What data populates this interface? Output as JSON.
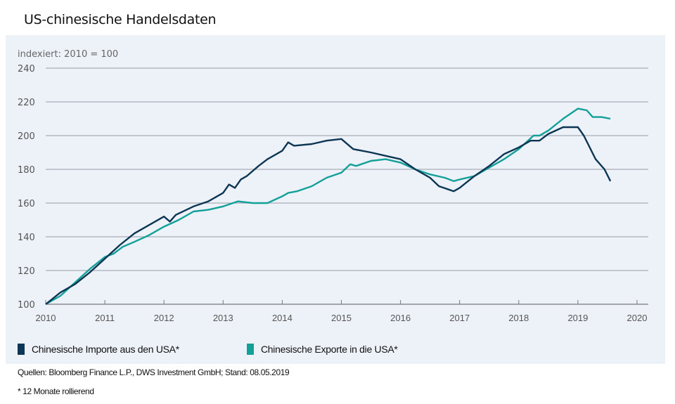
{
  "title": "US-chinesische Handelsdaten",
  "chart_data": {
    "type": "line",
    "ylabel": "indexiert: 2010 = 100",
    "xlim": [
      2010,
      2020
    ],
    "ylim": [
      100,
      240
    ],
    "x_ticks": [
      "2010",
      "2011",
      "2012",
      "2013",
      "2014",
      "2015",
      "2016",
      "2017",
      "2018",
      "2019",
      "2020"
    ],
    "y_ticks": [
      "100",
      "120",
      "140",
      "160",
      "180",
      "200",
      "220",
      "240"
    ],
    "grid": "horizontal",
    "legend_position": "bottom-left",
    "series": [
      {
        "name": "Chinesische Importe aus den USA*",
        "color": "#0d3554",
        "points": [
          [
            2010.0,
            100
          ],
          [
            2010.25,
            107
          ],
          [
            2010.5,
            112
          ],
          [
            2010.75,
            119
          ],
          [
            2011.0,
            127
          ],
          [
            2011.25,
            135
          ],
          [
            2011.5,
            142
          ],
          [
            2011.75,
            147
          ],
          [
            2012.0,
            152
          ],
          [
            2012.1,
            149
          ],
          [
            2012.2,
            153
          ],
          [
            2012.5,
            158
          ],
          [
            2012.75,
            161
          ],
          [
            2013.0,
            166
          ],
          [
            2013.1,
            171
          ],
          [
            2013.2,
            169
          ],
          [
            2013.3,
            174
          ],
          [
            2013.4,
            176
          ],
          [
            2013.6,
            182
          ],
          [
            2013.75,
            186
          ],
          [
            2014.0,
            191
          ],
          [
            2014.1,
            196
          ],
          [
            2014.2,
            194
          ],
          [
            2014.5,
            195
          ],
          [
            2014.75,
            197
          ],
          [
            2015.0,
            198
          ],
          [
            2015.2,
            192
          ],
          [
            2015.5,
            190
          ],
          [
            2015.75,
            188
          ],
          [
            2016.0,
            186
          ],
          [
            2016.25,
            180
          ],
          [
            2016.5,
            175
          ],
          [
            2016.65,
            170
          ],
          [
            2016.9,
            167
          ],
          [
            2017.0,
            169
          ],
          [
            2017.25,
            176
          ],
          [
            2017.5,
            182
          ],
          [
            2017.75,
            189
          ],
          [
            2018.0,
            193
          ],
          [
            2018.2,
            197
          ],
          [
            2018.35,
            197
          ],
          [
            2018.5,
            201
          ],
          [
            2018.75,
            205
          ],
          [
            2019.0,
            205
          ],
          [
            2019.1,
            200
          ],
          [
            2019.3,
            186
          ],
          [
            2019.45,
            180
          ],
          [
            2019.55,
            173
          ]
        ]
      },
      {
        "name": "Chinesische Exporte in die USA*",
        "color": "#12a099",
        "points": [
          [
            2010.0,
            100
          ],
          [
            2010.25,
            105
          ],
          [
            2010.5,
            113
          ],
          [
            2010.75,
            121
          ],
          [
            2011.0,
            128
          ],
          [
            2011.15,
            130
          ],
          [
            2011.3,
            134
          ],
          [
            2011.5,
            137
          ],
          [
            2011.75,
            141
          ],
          [
            2012.0,
            146
          ],
          [
            2012.25,
            150
          ],
          [
            2012.5,
            155
          ],
          [
            2012.75,
            156
          ],
          [
            2013.0,
            158
          ],
          [
            2013.25,
            161
          ],
          [
            2013.5,
            160
          ],
          [
            2013.75,
            160
          ],
          [
            2014.0,
            164
          ],
          [
            2014.1,
            166
          ],
          [
            2014.25,
            167
          ],
          [
            2014.5,
            170
          ],
          [
            2014.75,
            175
          ],
          [
            2015.0,
            178
          ],
          [
            2015.15,
            183
          ],
          [
            2015.25,
            182
          ],
          [
            2015.5,
            185
          ],
          [
            2015.75,
            186
          ],
          [
            2016.0,
            184
          ],
          [
            2016.25,
            180
          ],
          [
            2016.5,
            177
          ],
          [
            2016.75,
            175
          ],
          [
            2016.9,
            173
          ],
          [
            2017.0,
            174
          ],
          [
            2017.25,
            176
          ],
          [
            2017.5,
            181
          ],
          [
            2017.75,
            186
          ],
          [
            2018.0,
            192
          ],
          [
            2018.25,
            200
          ],
          [
            2018.35,
            200
          ],
          [
            2018.5,
            203
          ],
          [
            2018.75,
            210
          ],
          [
            2019.0,
            216
          ],
          [
            2019.15,
            215
          ],
          [
            2019.25,
            211
          ],
          [
            2019.4,
            211
          ],
          [
            2019.55,
            210
          ]
        ]
      }
    ]
  },
  "source": "Quellen: Bloomberg Finance L.P., DWS Investment GmbH; Stand: 08.05.2019",
  "footnote": "* 12 Monate rollierend"
}
